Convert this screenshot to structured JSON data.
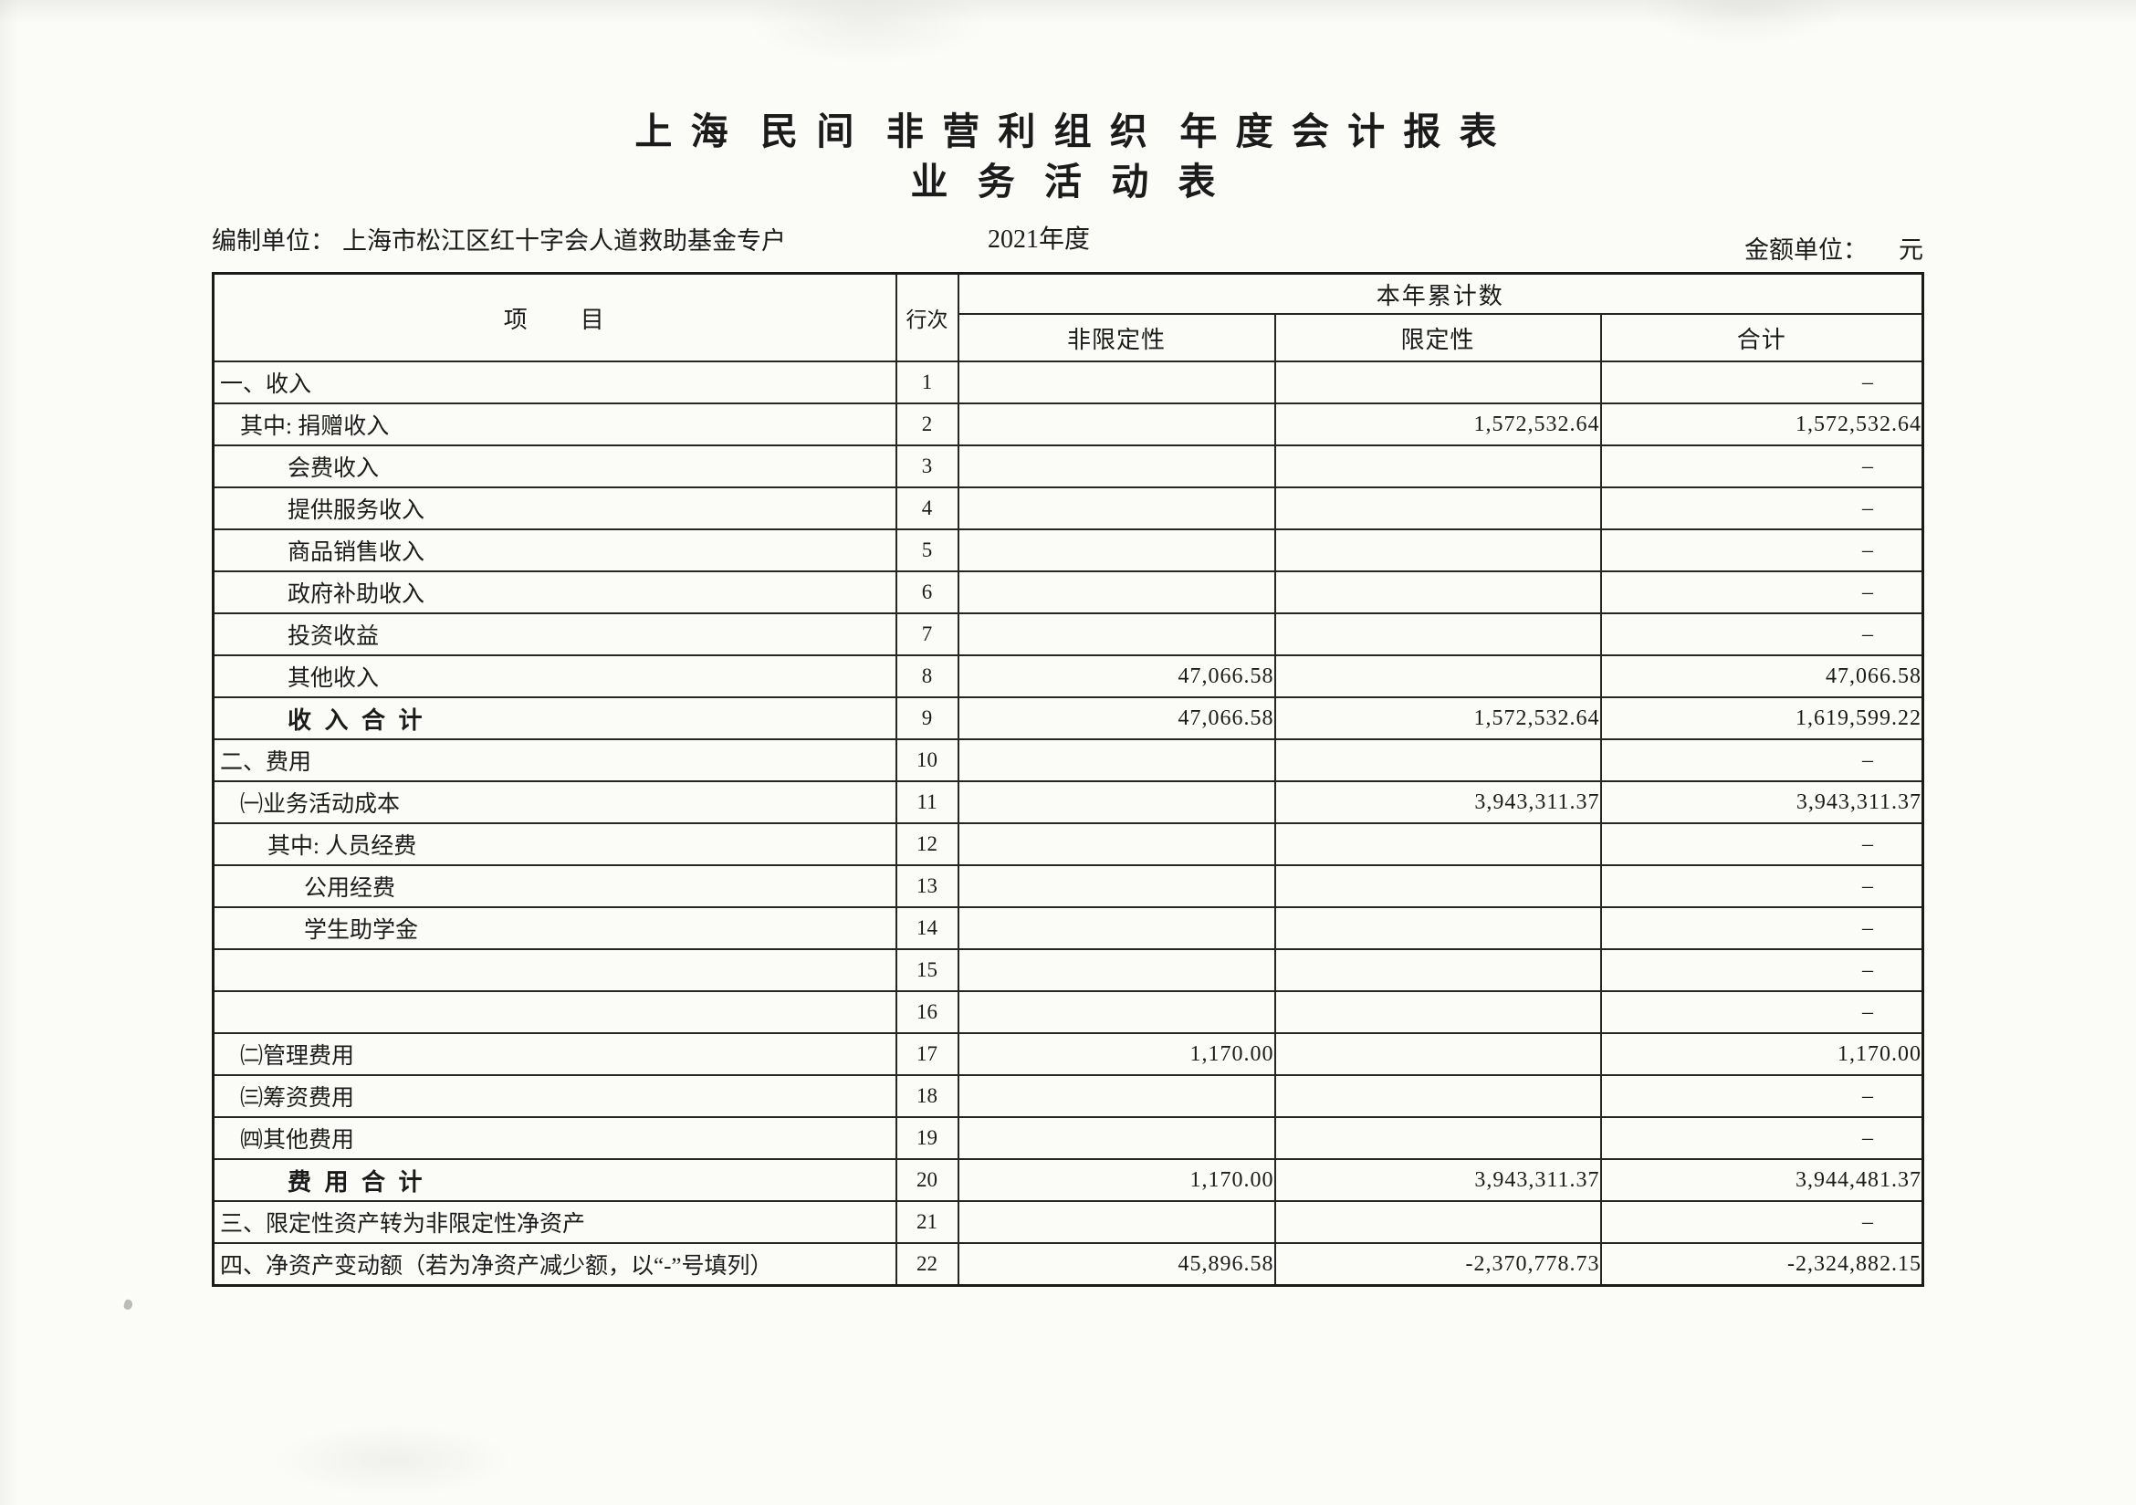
{
  "page": {
    "title_line1": "上 海  民 间  非 营 利 组 织  年 度 会 计 报 表",
    "title_line2": "业 务 活 动 表",
    "prepared_by_label": "编制单位：",
    "prepared_by": "上海市松江区红十字会人道救助基金专户",
    "period": "2021年度",
    "unit_label": "金额单位：",
    "unit_value": "元"
  },
  "table": {
    "col_item": "项　　目",
    "col_line": "行次",
    "col_group": "本年累计数",
    "col_unrestricted": "非限定性",
    "col_restricted": "限定性",
    "col_total": "合计",
    "rows": [
      {
        "label": "一、收入",
        "line": "1",
        "indent": 0,
        "bold": false,
        "unrestricted": "",
        "restricted": "",
        "total": "–"
      },
      {
        "label": "其中: 捐赠收入",
        "line": "2",
        "indent": 1,
        "bold": false,
        "unrestricted": "",
        "restricted": "1,572,532.64",
        "total": "1,572,532.64"
      },
      {
        "label": "会费收入",
        "line": "3",
        "indent": 3,
        "bold": false,
        "unrestricted": "",
        "restricted": "",
        "total": "–"
      },
      {
        "label": "提供服务收入",
        "line": "4",
        "indent": 3,
        "bold": false,
        "unrestricted": "",
        "restricted": "",
        "total": "–"
      },
      {
        "label": "商品销售收入",
        "line": "5",
        "indent": 3,
        "bold": false,
        "unrestricted": "",
        "restricted": "",
        "total": "–"
      },
      {
        "label": "政府补助收入",
        "line": "6",
        "indent": 3,
        "bold": false,
        "unrestricted": "",
        "restricted": "",
        "total": "–"
      },
      {
        "label": "投资收益",
        "line": "7",
        "indent": 3,
        "bold": false,
        "unrestricted": "",
        "restricted": "",
        "total": "–"
      },
      {
        "label": "其他收入",
        "line": "8",
        "indent": 3,
        "bold": false,
        "unrestricted": "47,066.58",
        "restricted": "",
        "total": "47,066.58"
      },
      {
        "label": "收 入 合 计",
        "line": "9",
        "indent": 3,
        "bold": true,
        "unrestricted": "47,066.58",
        "restricted": "1,572,532.64",
        "total": "1,619,599.22"
      },
      {
        "label": "二、费用",
        "line": "10",
        "indent": 0,
        "bold": false,
        "unrestricted": "",
        "restricted": "",
        "total": "–"
      },
      {
        "label": "㈠业务活动成本",
        "line": "11",
        "indent": 1,
        "bold": false,
        "unrestricted": "",
        "restricted": "3,943,311.37",
        "total": "3,943,311.37"
      },
      {
        "label": "其中: 人员经费",
        "line": "12",
        "indent": 2,
        "bold": false,
        "unrestricted": "",
        "restricted": "",
        "total": "–"
      },
      {
        "label": "公用经费",
        "line": "13",
        "indent": 4,
        "bold": false,
        "unrestricted": "",
        "restricted": "",
        "total": "–"
      },
      {
        "label": "学生助学金",
        "line": "14",
        "indent": 4,
        "bold": false,
        "unrestricted": "",
        "restricted": "",
        "total": "–"
      },
      {
        "label": "",
        "line": "15",
        "indent": 0,
        "bold": false,
        "unrestricted": "",
        "restricted": "",
        "total": "–"
      },
      {
        "label": "",
        "line": "16",
        "indent": 0,
        "bold": false,
        "unrestricted": "",
        "restricted": "",
        "total": "–"
      },
      {
        "label": "㈡管理费用",
        "line": "17",
        "indent": 1,
        "bold": false,
        "unrestricted": "1,170.00",
        "restricted": "",
        "total": "1,170.00"
      },
      {
        "label": "㈢筹资费用",
        "line": "18",
        "indent": 1,
        "bold": false,
        "unrestricted": "",
        "restricted": "",
        "total": "–"
      },
      {
        "label": "㈣其他费用",
        "line": "19",
        "indent": 1,
        "bold": false,
        "unrestricted": "",
        "restricted": "",
        "total": "–"
      },
      {
        "label": "费 用 合 计",
        "line": "20",
        "indent": 3,
        "bold": true,
        "unrestricted": "1,170.00",
        "restricted": "3,943,311.37",
        "total": "3,944,481.37"
      },
      {
        "label": "三、限定性资产转为非限定性净资产",
        "line": "21",
        "indent": 0,
        "bold": false,
        "unrestricted": "",
        "restricted": "",
        "total": "–"
      },
      {
        "label": "四、净资产变动额（若为净资产减少额，以“-”号填列）",
        "line": "22",
        "indent": 0,
        "bold": false,
        "unrestricted": "45,896.58",
        "restricted": "-2,370,778.73",
        "total": "-2,324,882.15"
      }
    ]
  }
}
